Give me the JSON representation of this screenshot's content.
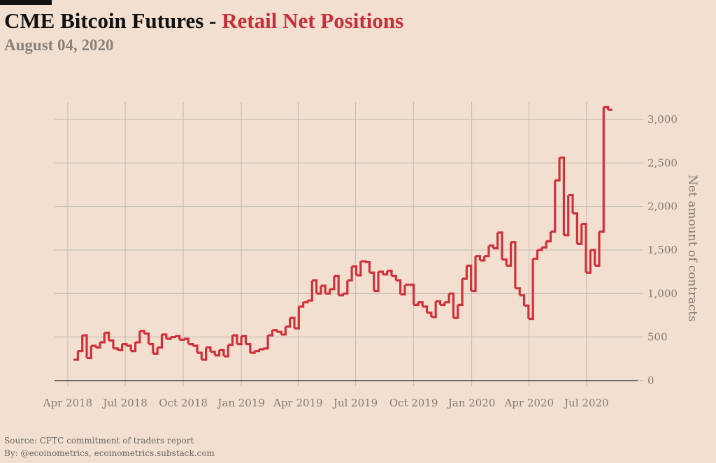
{
  "header": {
    "title_main": "CME Bitcoin Futures - ",
    "title_accent": "Retail Net Positions",
    "subtitle": "August 04, 2020"
  },
  "footer": {
    "source": "Source: CFTC commitment of traders report",
    "byline": "By: @ecoinometrics, ecoinometrics.substack.com"
  },
  "colors": {
    "background": "#f2dfcf",
    "line": "#d0313b",
    "accent_text": "#c7303a",
    "grid": "#c2bab3",
    "axis_text": "#857b73"
  },
  "chart_data": {
    "type": "line",
    "step": true,
    "title": "CME Bitcoin Futures - Retail Net Positions",
    "subtitle": "August 04, 2020",
    "ylabel": "Net amount of contracts",
    "xlabel": "",
    "y_axis_position": "right",
    "ylim": [
      0,
      3200
    ],
    "yticks": [
      0,
      500,
      1000,
      1500,
      2000,
      2500,
      3000
    ],
    "ytick_labels": [
      "0",
      "500",
      "1,000",
      "1,500",
      "2,000",
      "2,500",
      "3,000"
    ],
    "xlim": [
      "2018-03-11",
      "2020-09-20"
    ],
    "xticks": [
      "2018-04-01",
      "2018-07-01",
      "2018-10-01",
      "2019-01-01",
      "2019-04-01",
      "2019-07-01",
      "2019-10-01",
      "2020-01-01",
      "2020-04-01",
      "2020-07-01"
    ],
    "xtick_labels": [
      "Apr 2018",
      "Jul 2018",
      "Oct 2018",
      "Jan 2019",
      "Apr 2019",
      "Jul 2019",
      "Oct 2019",
      "Jan 2020",
      "Apr 2020",
      "Jul 2020"
    ],
    "grid": true,
    "series": [
      {
        "color": "#d0313b",
        "points": [
          [
            "2018-04-10",
            240
          ],
          [
            "2018-04-17",
            340
          ],
          [
            "2018-04-24",
            520
          ],
          [
            "2018-05-01",
            260
          ],
          [
            "2018-05-08",
            400
          ],
          [
            "2018-05-15",
            380
          ],
          [
            "2018-05-22",
            440
          ],
          [
            "2018-05-29",
            550
          ],
          [
            "2018-06-05",
            460
          ],
          [
            "2018-06-12",
            370
          ],
          [
            "2018-06-19",
            350
          ],
          [
            "2018-06-26",
            420
          ],
          [
            "2018-07-03",
            400
          ],
          [
            "2018-07-10",
            340
          ],
          [
            "2018-07-17",
            440
          ],
          [
            "2018-07-24",
            570
          ],
          [
            "2018-07-31",
            540
          ],
          [
            "2018-08-07",
            420
          ],
          [
            "2018-08-14",
            310
          ],
          [
            "2018-08-21",
            380
          ],
          [
            "2018-08-28",
            530
          ],
          [
            "2018-09-04",
            480
          ],
          [
            "2018-09-11",
            500
          ],
          [
            "2018-09-18",
            510
          ],
          [
            "2018-09-25",
            470
          ],
          [
            "2018-10-02",
            480
          ],
          [
            "2018-10-09",
            420
          ],
          [
            "2018-10-16",
            400
          ],
          [
            "2018-10-23",
            320
          ],
          [
            "2018-10-30",
            240
          ],
          [
            "2018-11-06",
            380
          ],
          [
            "2018-11-13",
            330
          ],
          [
            "2018-11-20",
            290
          ],
          [
            "2018-11-27",
            350
          ],
          [
            "2018-12-04",
            280
          ],
          [
            "2018-12-11",
            410
          ],
          [
            "2018-12-18",
            520
          ],
          [
            "2018-12-25",
            420
          ],
          [
            "2019-01-01",
            510
          ],
          [
            "2019-01-08",
            420
          ],
          [
            "2019-01-15",
            320
          ],
          [
            "2019-01-22",
            340
          ],
          [
            "2019-01-29",
            360
          ],
          [
            "2019-02-05",
            370
          ],
          [
            "2019-02-12",
            520
          ],
          [
            "2019-02-19",
            580
          ],
          [
            "2019-02-26",
            560
          ],
          [
            "2019-03-05",
            530
          ],
          [
            "2019-03-12",
            620
          ],
          [
            "2019-03-19",
            720
          ],
          [
            "2019-03-26",
            600
          ],
          [
            "2019-04-02",
            850
          ],
          [
            "2019-04-09",
            900
          ],
          [
            "2019-04-16",
            920
          ],
          [
            "2019-04-23",
            1150
          ],
          [
            "2019-04-30",
            1000
          ],
          [
            "2019-05-07",
            1090
          ],
          [
            "2019-05-14",
            1000
          ],
          [
            "2019-05-21",
            1050
          ],
          [
            "2019-05-28",
            1200
          ],
          [
            "2019-06-04",
            980
          ],
          [
            "2019-06-11",
            1000
          ],
          [
            "2019-06-18",
            1150
          ],
          [
            "2019-06-25",
            1310
          ],
          [
            "2019-07-02",
            1210
          ],
          [
            "2019-07-09",
            1370
          ],
          [
            "2019-07-16",
            1360
          ],
          [
            "2019-07-23",
            1240
          ],
          [
            "2019-07-30",
            1030
          ],
          [
            "2019-08-06",
            1250
          ],
          [
            "2019-08-13",
            1220
          ],
          [
            "2019-08-20",
            1260
          ],
          [
            "2019-08-27",
            1200
          ],
          [
            "2019-09-03",
            1150
          ],
          [
            "2019-09-10",
            990
          ],
          [
            "2019-09-17",
            1100
          ],
          [
            "2019-09-24",
            1100
          ],
          [
            "2019-10-01",
            870
          ],
          [
            "2019-10-08",
            900
          ],
          [
            "2019-10-15",
            850
          ],
          [
            "2019-10-22",
            780
          ],
          [
            "2019-10-29",
            730
          ],
          [
            "2019-11-05",
            910
          ],
          [
            "2019-11-12",
            870
          ],
          [
            "2019-11-19",
            900
          ],
          [
            "2019-11-26",
            1000
          ],
          [
            "2019-12-03",
            720
          ],
          [
            "2019-12-10",
            870
          ],
          [
            "2019-12-17",
            1170
          ],
          [
            "2019-12-24",
            1320
          ],
          [
            "2019-12-31",
            1030
          ],
          [
            "2020-01-07",
            1430
          ],
          [
            "2020-01-14",
            1380
          ],
          [
            "2020-01-21",
            1430
          ],
          [
            "2020-01-28",
            1550
          ],
          [
            "2020-02-04",
            1520
          ],
          [
            "2020-02-11",
            1700
          ],
          [
            "2020-02-18",
            1390
          ],
          [
            "2020-02-25",
            1320
          ],
          [
            "2020-03-03",
            1590
          ],
          [
            "2020-03-10",
            1060
          ],
          [
            "2020-03-17",
            980
          ],
          [
            "2020-03-24",
            860
          ],
          [
            "2020-03-31",
            710
          ],
          [
            "2020-04-07",
            1400
          ],
          [
            "2020-04-14",
            1500
          ],
          [
            "2020-04-21",
            1530
          ],
          [
            "2020-04-28",
            1600
          ],
          [
            "2020-05-05",
            1710
          ],
          [
            "2020-05-12",
            2300
          ],
          [
            "2020-05-19",
            2560
          ],
          [
            "2020-05-26",
            1670
          ],
          [
            "2020-06-02",
            2130
          ],
          [
            "2020-06-09",
            1920
          ],
          [
            "2020-06-16",
            1570
          ],
          [
            "2020-06-23",
            1800
          ],
          [
            "2020-06-30",
            1240
          ],
          [
            "2020-07-07",
            1500
          ],
          [
            "2020-07-14",
            1320
          ],
          [
            "2020-07-21",
            1710
          ],
          [
            "2020-07-28",
            3140
          ],
          [
            "2020-08-04",
            3110
          ]
        ]
      }
    ]
  }
}
